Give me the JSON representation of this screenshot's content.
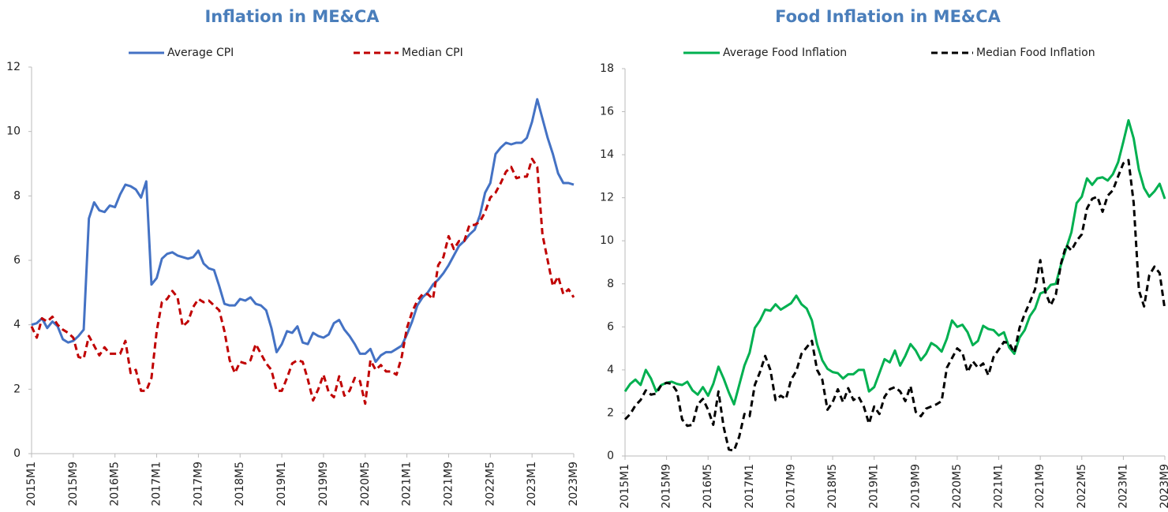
{
  "chart_data": [
    {
      "type": "line",
      "title": "Inflation in ME&CA",
      "categories": [
        "2015M1",
        null,
        null,
        null,
        null,
        null,
        null,
        null,
        "2015M9",
        null,
        null,
        null,
        null,
        null,
        null,
        null,
        "2016M5",
        null,
        null,
        null,
        null,
        null,
        null,
        null,
        "2017M1",
        null,
        null,
        null,
        null,
        null,
        null,
        null,
        "2017M9",
        null,
        null,
        null,
        null,
        null,
        null,
        null,
        "2018M5",
        null,
        null,
        null,
        null,
        null,
        null,
        null,
        "2019M1",
        null,
        null,
        null,
        null,
        null,
        null,
        null,
        "2019M9",
        null,
        null,
        null,
        null,
        null,
        null,
        null,
        "2020M5",
        null,
        null,
        null,
        null,
        null,
        null,
        null,
        "2021M1",
        null,
        null,
        null,
        null,
        null,
        null,
        null,
        "2021M9",
        null,
        null,
        null,
        null,
        null,
        null,
        null,
        "2022M5",
        null,
        null,
        null,
        null,
        null,
        null,
        null,
        "2023M1",
        null,
        null,
        null,
        null,
        null,
        null,
        null,
        "2023M9"
      ],
      "ylim": [
        0,
        12
      ],
      "yticks": [
        0,
        2,
        4,
        6,
        8,
        10,
        12
      ],
      "grid": false,
      "series": [
        {
          "name": "Average CPI",
          "color": "#4472c4",
          "line_style": "solid",
          "values": [
            4.0,
            4.05,
            4.2,
            3.9,
            4.1,
            3.95,
            3.55,
            3.45,
            3.5,
            3.65,
            3.85,
            7.3,
            7.8,
            7.55,
            7.5,
            7.7,
            7.65,
            8.05,
            8.35,
            8.3,
            8.2,
            7.95,
            8.45,
            5.25,
            5.45,
            6.05,
            6.2,
            6.25,
            6.15,
            6.1,
            6.05,
            6.1,
            6.3,
            5.9,
            5.75,
            5.7,
            5.2,
            4.65,
            4.6,
            4.6,
            4.8,
            4.75,
            4.85,
            4.65,
            4.6,
            4.45,
            3.9,
            3.15,
            3.4,
            3.8,
            3.75,
            3.95,
            3.45,
            3.4,
            3.75,
            3.65,
            3.6,
            3.7,
            4.05,
            4.15,
            3.85,
            3.65,
            3.4,
            3.1,
            3.1,
            3.25,
            2.85,
            3.05,
            3.15,
            3.15,
            3.25,
            3.35,
            3.7,
            4.1,
            4.6,
            4.85,
            5.0,
            5.25,
            5.4,
            5.6,
            5.85,
            6.15,
            6.45,
            6.6,
            6.8,
            6.95,
            7.4,
            8.1,
            8.4,
            9.3,
            9.5,
            9.65,
            9.6,
            9.65,
            9.65,
            9.8,
            10.3,
            11.0,
            10.4,
            9.8,
            9.3,
            8.7,
            8.4,
            8.4,
            8.35
          ]
        },
        {
          "name": "Median CPI",
          "color": "#c00000",
          "line_style": "dashed",
          "values": [
            3.95,
            3.6,
            4.2,
            4.1,
            4.25,
            4.0,
            3.85,
            3.75,
            3.6,
            3.0,
            2.95,
            3.65,
            3.35,
            3.05,
            3.3,
            3.1,
            3.1,
            3.1,
            3.5,
            2.5,
            2.6,
            1.95,
            1.95,
            2.35,
            3.8,
            4.7,
            4.8,
            5.05,
            4.85,
            3.95,
            4.1,
            4.55,
            4.8,
            4.7,
            4.75,
            4.6,
            4.45,
            3.8,
            2.9,
            2.5,
            2.85,
            2.8,
            2.9,
            3.4,
            3.1,
            2.8,
            2.6,
            1.95,
            1.95,
            2.35,
            2.8,
            2.9,
            2.85,
            2.3,
            1.65,
            2.0,
            2.45,
            1.9,
            1.75,
            2.4,
            1.8,
            1.95,
            2.35,
            2.25,
            1.55,
            2.9,
            2.6,
            2.75,
            2.55,
            2.55,
            2.45,
            3.0,
            3.9,
            4.4,
            4.75,
            4.95,
            4.95,
            4.8,
            5.85,
            6.1,
            6.75,
            6.35,
            6.6,
            6.6,
            7.1,
            7.1,
            7.2,
            7.5,
            7.95,
            8.1,
            8.4,
            8.75,
            8.9,
            8.55,
            8.6,
            8.6,
            9.15,
            8.9,
            6.8,
            6.0,
            5.2,
            5.5,
            4.95,
            5.1,
            4.85
          ]
        }
      ]
    },
    {
      "type": "line",
      "title": "Food Inflation in ME&CA",
      "categories": [
        "2015M1",
        null,
        null,
        null,
        null,
        null,
        null,
        null,
        "2015M9",
        null,
        null,
        null,
        null,
        null,
        null,
        null,
        "2016M5",
        null,
        null,
        null,
        null,
        null,
        null,
        null,
        "2017M1",
        null,
        null,
        null,
        null,
        null,
        null,
        null,
        "2017M9",
        null,
        null,
        null,
        null,
        null,
        null,
        null,
        "2018M5",
        null,
        null,
        null,
        null,
        null,
        null,
        null,
        "2019M1",
        null,
        null,
        null,
        null,
        null,
        null,
        null,
        "2019M9",
        null,
        null,
        null,
        null,
        null,
        null,
        null,
        "2020M5",
        null,
        null,
        null,
        null,
        null,
        null,
        null,
        "2021M1",
        null,
        null,
        null,
        null,
        null,
        null,
        null,
        "2021M9",
        null,
        null,
        null,
        null,
        null,
        null,
        null,
        "2022M5",
        null,
        null,
        null,
        null,
        null,
        null,
        null,
        "2023M1",
        null,
        null,
        null,
        null,
        null,
        null,
        null,
        "2023M9"
      ],
      "ylim": [
        0,
        18
      ],
      "yticks": [
        0,
        2,
        4,
        6,
        8,
        10,
        12,
        14,
        16,
        18
      ],
      "grid": false,
      "series": [
        {
          "name": "Average Food Inflation",
          "color": "#00b050",
          "line_style": "solid",
          "values": [
            3.0,
            3.35,
            3.55,
            3.3,
            4.0,
            3.6,
            3.0,
            3.3,
            3.4,
            3.45,
            3.35,
            3.3,
            3.45,
            3.05,
            2.85,
            3.2,
            2.8,
            3.35,
            4.15,
            3.6,
            2.95,
            2.4,
            3.3,
            4.2,
            4.8,
            5.95,
            6.3,
            6.8,
            6.75,
            7.05,
            6.8,
            6.95,
            7.1,
            7.45,
            7.05,
            6.85,
            6.3,
            5.2,
            4.45,
            4.05,
            3.9,
            3.85,
            3.6,
            3.8,
            3.8,
            4.0,
            4.0,
            3.0,
            3.2,
            3.85,
            4.5,
            4.35,
            4.9,
            4.2,
            4.65,
            5.2,
            4.9,
            4.45,
            4.75,
            5.25,
            5.1,
            4.85,
            5.45,
            6.3,
            6.0,
            6.1,
            5.75,
            5.15,
            5.35,
            6.05,
            5.9,
            5.85,
            5.6,
            5.75,
            5.05,
            4.75,
            5.5,
            5.85,
            6.5,
            6.85,
            7.55,
            7.65,
            7.95,
            8.0,
            8.9,
            9.65,
            10.4,
            11.75,
            12.05,
            12.9,
            12.6,
            12.9,
            12.95,
            12.8,
            13.1,
            13.65,
            14.6,
            15.6,
            14.75,
            13.3,
            12.45,
            12.05,
            12.3,
            12.65,
            11.95
          ]
        },
        {
          "name": "Median Food Inflation",
          "color": "#000000",
          "line_style": "dashed",
          "values": [
            1.7,
            1.95,
            2.35,
            2.6,
            3.05,
            2.85,
            2.9,
            3.3,
            3.4,
            3.35,
            3.0,
            1.7,
            1.4,
            1.45,
            2.4,
            2.65,
            2.15,
            1.45,
            3.0,
            1.35,
            0.3,
            0.25,
            0.9,
            1.95,
            1.85,
            3.3,
            3.9,
            4.65,
            4.0,
            2.6,
            2.8,
            2.65,
            3.55,
            3.95,
            4.75,
            5.05,
            5.35,
            4.0,
            3.55,
            2.15,
            2.5,
            3.1,
            2.5,
            3.15,
            2.6,
            2.75,
            2.3,
            1.5,
            2.3,
            1.95,
            2.75,
            3.1,
            3.2,
            3.0,
            2.55,
            3.25,
            2.05,
            1.85,
            2.2,
            2.3,
            2.4,
            2.55,
            4.1,
            4.55,
            5.0,
            4.8,
            3.9,
            4.4,
            4.1,
            4.3,
            3.75,
            4.6,
            4.95,
            5.3,
            5.25,
            4.8,
            5.95,
            6.6,
            7.15,
            7.75,
            9.1,
            7.6,
            7.0,
            7.5,
            8.95,
            9.8,
            9.55,
            10.0,
            10.3,
            11.5,
            11.95,
            12.05,
            11.35,
            12.1,
            12.35,
            13.0,
            13.6,
            13.75,
            11.75,
            7.7,
            6.95,
            8.4,
            8.8,
            8.5,
            6.8
          ]
        }
      ]
    }
  ]
}
